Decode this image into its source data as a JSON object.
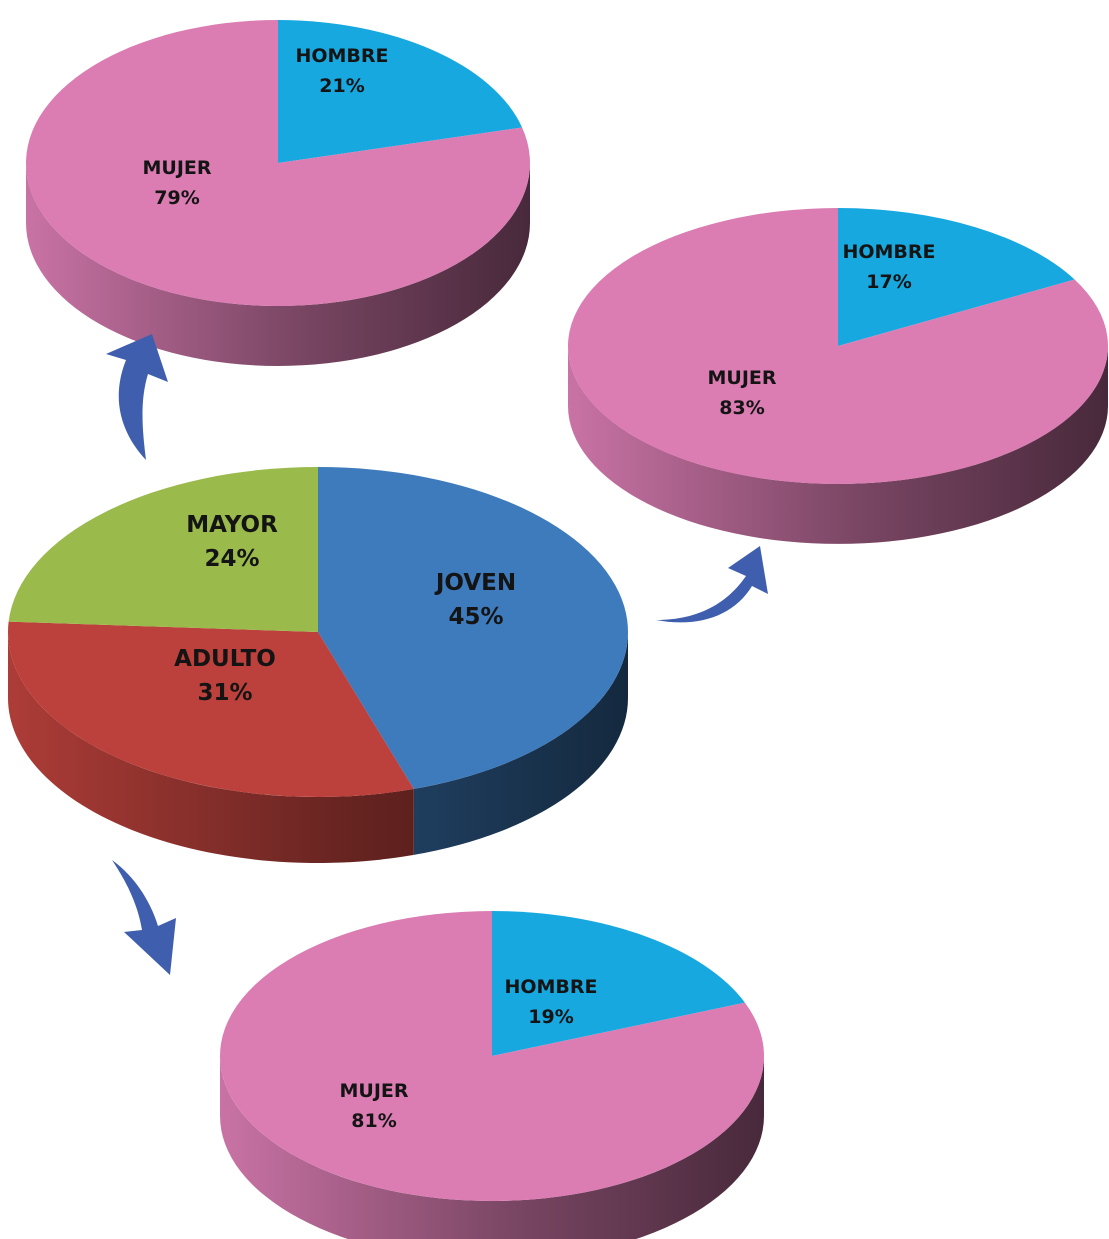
{
  "chart_data": [
    {
      "type": "pie",
      "title": "",
      "slices": [
        {
          "name": "JOVEN",
          "label": "JOVEN",
          "percent_label": "45%",
          "value": 45,
          "color": "#3d7bbd"
        },
        {
          "name": "ADULTO",
          "label": "ADULTO",
          "percent_label": "31%",
          "value": 31,
          "color": "#bc413c"
        },
        {
          "name": "MAYOR",
          "label": "MAYOR",
          "percent_label": "24%",
          "value": 24,
          "color": "#9aba4c"
        }
      ]
    },
    {
      "type": "pie",
      "title": "",
      "slices": [
        {
          "name": "HOMBRE",
          "label": "HOMBRE",
          "percent_label": "21%",
          "value": 21,
          "color": "#17a8e0"
        },
        {
          "name": "MUJER",
          "label": "MUJER",
          "percent_label": "79%",
          "value": 79,
          "color": "#db7db3"
        }
      ]
    },
    {
      "type": "pie",
      "title": "",
      "slices": [
        {
          "name": "HOMBRE",
          "label": "HOMBRE",
          "percent_label": "17%",
          "value": 17,
          "color": "#17a8e0"
        },
        {
          "name": "MUJER",
          "label": "MUJER",
          "percent_label": "83%",
          "value": 83,
          "color": "#db7db3"
        }
      ]
    },
    {
      "type": "pie",
      "title": "",
      "slices": [
        {
          "name": "HOMBRE",
          "label": "HOMBRE",
          "percent_label": "19%",
          "value": 19,
          "color": "#17a8e0"
        },
        {
          "name": "MUJER",
          "label": "MUJER",
          "percent_label": "81%",
          "value": 81,
          "color": "#db7db3"
        }
      ]
    }
  ],
  "arrow_color": "#3f5fae"
}
